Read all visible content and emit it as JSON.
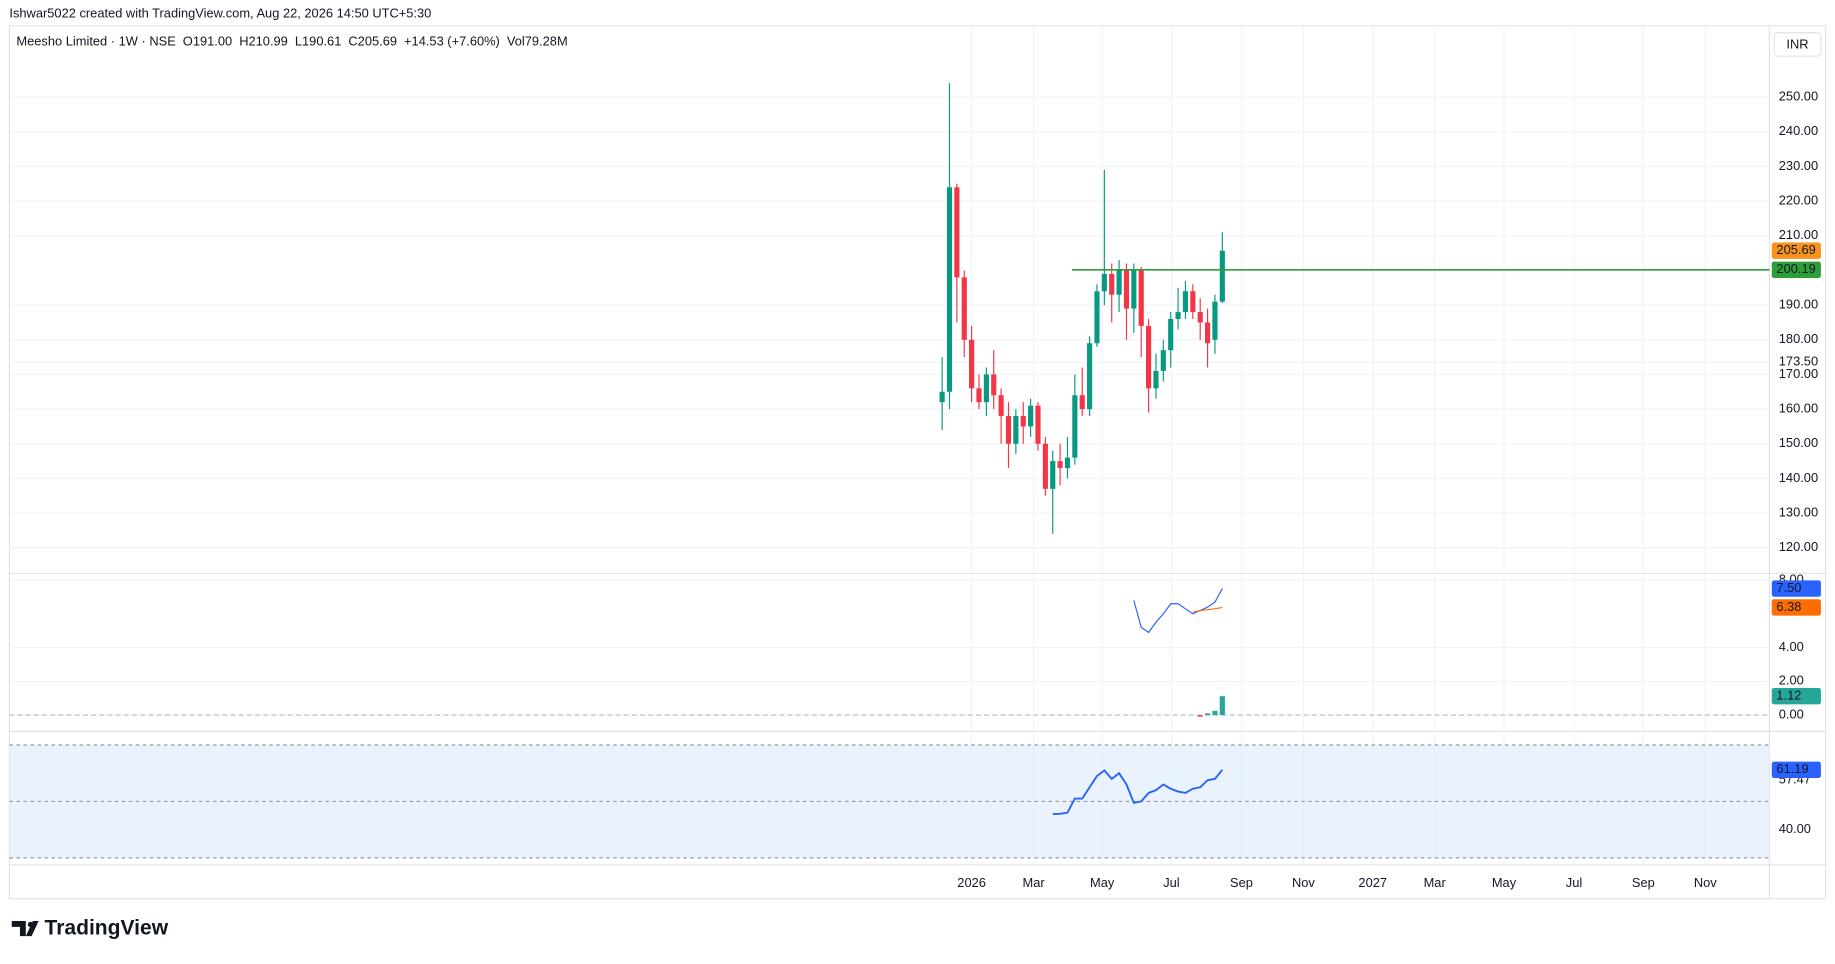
{
  "header": {
    "credit": "Ishwar5022 created with TradingView.com, Aug 22, 2026 14:50 UTC+5:30",
    "brand": "TradingView",
    "currency": "INR"
  },
  "chart_data": {
    "type": "candlestick",
    "title": "Meesho Limited · 1W · NSE",
    "legend": [
      {
        "key": "O",
        "text": "191.00"
      },
      {
        "key": "H",
        "text": "210.99"
      },
      {
        "key": "L",
        "text": "190.61"
      },
      {
        "key": "C",
        "text": "205.69"
      },
      {
        "key": "",
        "text": "+14.53 (+7.60%)"
      },
      {
        "key": "Vol",
        "text": "79.28M"
      }
    ],
    "up_color": "#089981",
    "down_color": "#f23645",
    "open": [
      162,
      165,
      224,
      198,
      180,
      166,
      162,
      170,
      164,
      158,
      150,
      158,
      155,
      161,
      150,
      137,
      145,
      143,
      146,
      164,
      160,
      179,
      194,
      199,
      193,
      200,
      189,
      200,
      184,
      166,
      171,
      177,
      186,
      188,
      194,
      188,
      185,
      180,
      191
    ],
    "high": [
      175,
      254,
      225,
      200,
      184,
      170,
      172,
      177,
      166,
      162,
      160,
      162,
      163,
      162,
      152,
      148,
      150,
      152,
      170,
      172,
      181,
      196,
      229,
      202,
      203,
      202,
      202,
      201,
      186,
      176,
      180,
      188,
      195,
      197,
      196,
      192,
      189,
      193,
      210.99
    ],
    "low": [
      154,
      160,
      185,
      175,
      162,
      160,
      158,
      160,
      150,
      143,
      147,
      150,
      152,
      148,
      135,
      124,
      138,
      140,
      144,
      158,
      158,
      178,
      190,
      185,
      188,
      180,
      182,
      175,
      159,
      163,
      168,
      172,
      183,
      186,
      186,
      180,
      172,
      176,
      190.61
    ],
    "close": [
      165,
      224,
      198,
      180,
      166,
      162,
      170,
      164,
      158,
      150,
      158,
      155,
      161,
      150,
      137,
      145,
      143,
      146,
      164,
      160,
      179,
      194,
      199,
      193,
      200,
      189,
      200,
      184,
      166,
      171,
      177,
      186,
      188,
      194,
      188,
      185,
      179,
      191,
      205.69
    ],
    "xlim": [
      -126.5,
      112.2
    ],
    "xticks": [
      {
        "value": 4,
        "label": "2026"
      },
      {
        "value": 12.4,
        "label": "Mar"
      },
      {
        "value": 21.7,
        "label": "May"
      },
      {
        "value": 31.1,
        "label": "Jul"
      },
      {
        "value": 40.6,
        "label": "Sep"
      },
      {
        "value": 49,
        "label": "Nov"
      },
      {
        "value": 58.4,
        "label": "2027"
      },
      {
        "value": 66.8,
        "label": "Mar"
      },
      {
        "value": 76.2,
        "label": "May"
      },
      {
        "value": 85.7,
        "label": "Jul"
      },
      {
        "value": 95.1,
        "label": "Sep"
      },
      {
        "value": 103.5,
        "label": "Nov"
      }
    ],
    "ylim": [
      112.6,
      270.6
    ],
    "yticks": [
      {
        "value": 120,
        "label": "120.00"
      },
      {
        "value": 130,
        "label": "130.00"
      },
      {
        "value": 140,
        "label": "140.00"
      },
      {
        "value": 150,
        "label": "150.00"
      },
      {
        "value": 160,
        "label": "160.00"
      },
      {
        "value": 170,
        "label": "170.00"
      },
      {
        "value": 173.5,
        "label": "173.50"
      },
      {
        "value": 180,
        "label": "180.00"
      },
      {
        "value": 190,
        "label": "190.00"
      },
      {
        "value": 210,
        "label": "210.00"
      },
      {
        "value": 220,
        "label": "220.00"
      },
      {
        "value": 230,
        "label": "230.00"
      },
      {
        "value": 240,
        "label": "240.00"
      },
      {
        "value": 250,
        "label": "250.00"
      }
    ],
    "grid": true,
    "level": {
      "value": 200.19,
      "label": "200.19",
      "color": "#2e9e3a",
      "from": 17.6
    },
    "last_tag": {
      "value": 205.69,
      "label": "205.69",
      "color": "#f7931a"
    },
    "macd": {
      "ylim": [
        -0.97,
        8.26
      ],
      "yticks": [
        {
          "value": 0,
          "label": "0.00"
        },
        {
          "value": 2,
          "label": "2.00"
        },
        {
          "value": 4,
          "label": "4.00"
        },
        {
          "value": 8,
          "label": "8.00"
        }
      ],
      "series": [
        {
          "color": "#2962ff",
          "values": [
            null,
            null,
            null,
            null,
            null,
            null,
            null,
            null,
            null,
            null,
            null,
            null,
            null,
            null,
            null,
            null,
            null,
            null,
            null,
            null,
            null,
            null,
            null,
            null,
            null,
            null,
            6.8,
            5.2,
            4.9,
            5.5,
            6.0,
            6.6,
            6.6,
            6.3,
            6.0,
            6.2,
            6.4,
            6.7,
            7.5
          ],
          "tag": {
            "value": 7.5,
            "label": "7.50"
          }
        },
        {
          "color": "#ff6d00",
          "values": [
            null,
            null,
            null,
            null,
            null,
            null,
            null,
            null,
            null,
            null,
            null,
            null,
            null,
            null,
            null,
            null,
            null,
            null,
            null,
            null,
            null,
            null,
            null,
            null,
            null,
            null,
            null,
            null,
            null,
            null,
            null,
            null,
            null,
            null,
            6.1,
            6.2,
            6.25,
            6.3,
            6.38
          ],
          "tag": {
            "value": 6.38,
            "label": "6.38"
          }
        }
      ],
      "histogram": {
        "up_color": "#26a69a",
        "down_color": "#ef5350",
        "values": [
          null,
          null,
          null,
          null,
          null,
          null,
          null,
          null,
          null,
          null,
          null,
          null,
          null,
          null,
          null,
          null,
          null,
          null,
          null,
          null,
          null,
          null,
          null,
          null,
          null,
          null,
          null,
          null,
          null,
          null,
          null,
          null,
          null,
          null,
          null,
          -0.1,
          0.1,
          0.25,
          1.12
        ],
        "tag": {
          "value": 1.12,
          "label": "1.12"
        }
      }
    },
    "rsi": {
      "ylim": [
        29.2,
        74.4
      ],
      "band": [
        30,
        70
      ],
      "levels": [
        70,
        50,
        30
      ],
      "yticks": [
        {
          "value": 40,
          "label": "40.00"
        }
      ],
      "series": {
        "color": "#2962ff",
        "values": [
          null,
          null,
          null,
          null,
          null,
          null,
          null,
          null,
          null,
          null,
          null,
          null,
          null,
          null,
          null,
          45.5,
          45.6,
          46,
          51,
          51,
          55,
          59,
          61,
          58,
          60,
          56,
          49.5,
          50,
          53,
          54,
          56,
          54.5,
          53.5,
          53,
          54.5,
          55,
          57.5,
          58,
          61.19
        ],
        "tag": {
          "value": 61.19,
          "label": "61.19"
        }
      },
      "ma_label": {
        "value": 57.47,
        "label": "57.47"
      }
    }
  }
}
